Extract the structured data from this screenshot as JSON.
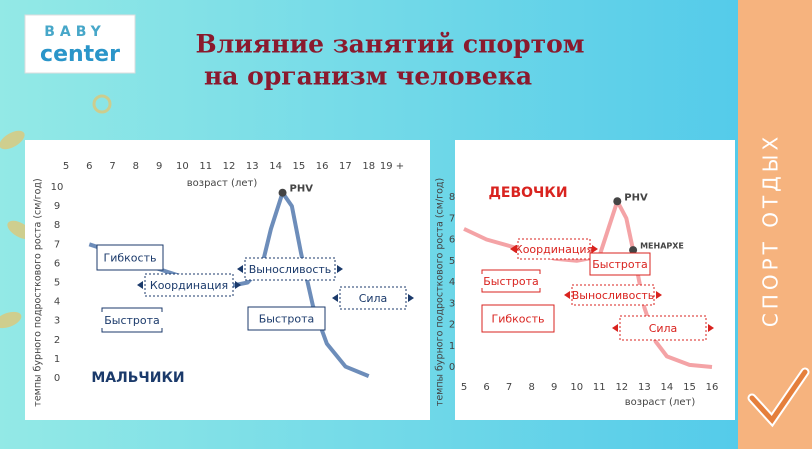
{
  "header": {
    "logo_top": "BABY",
    "logo_bottom": "center",
    "title_line1": "Влияние занятий спортом",
    "title_line2": "на организм человека",
    "sidebar": "СПОРТ  ОТДЫХ"
  },
  "chart_data": [
    {
      "type": "line",
      "title": "МАЛЬЧИКИ",
      "color": "#6d8dba",
      "text_color": "#1b3a6b",
      "xaxis_position": "top",
      "xlabel": "возраст (лет)",
      "ylabel": "темпы бурного подросткового роста (см/год)",
      "x": [
        6,
        7,
        8,
        9,
        10,
        11,
        12,
        12.8,
        13.4,
        13.8,
        14.3,
        14.7,
        15.1,
        15.6,
        16.2,
        17,
        18
      ],
      "values": [
        7,
        6.6,
        6.1,
        5.7,
        5.3,
        5,
        4.8,
        5,
        5.8,
        7.8,
        9.7,
        9,
        6.5,
        3.8,
        1.8,
        0.6,
        0.1
      ],
      "xlim": [
        5,
        19
      ],
      "ylim": [
        0,
        10
      ],
      "xticks": [
        5,
        6,
        7,
        8,
        9,
        10,
        11,
        12,
        13,
        14,
        15,
        16,
        17,
        18,
        {
          "value": 19,
          "label": "19 +"
        }
      ],
      "yticks": [
        0,
        1,
        2,
        3,
        4,
        5,
        6,
        7,
        8,
        9,
        10
      ],
      "markers": [
        {
          "label": "PHV",
          "x": 14.3,
          "y": 9.7
        }
      ],
      "annotations": [
        "Гибкость",
        "Координация",
        "Выносливость",
        "Сила",
        "Быстрота",
        "Быстрота"
      ]
    },
    {
      "type": "line",
      "title": "ДЕВОЧКИ",
      "color": "#f4a3a6",
      "text_color": "#d9231f",
      "xaxis_position": "bottom",
      "xlabel": "возраст (лет)",
      "ylabel": "темпы бурного подросткового роста (см/год)",
      "x": [
        5,
        6,
        7,
        8,
        9,
        10,
        11,
        11.4,
        11.8,
        12.2,
        12.5,
        13,
        13.5,
        14,
        15,
        16
      ],
      "values": [
        6.5,
        6,
        5.7,
        5.4,
        5.1,
        5,
        5.2,
        6.5,
        7.8,
        7,
        5.5,
        2.8,
        1.2,
        0.5,
        0.1,
        0
      ],
      "xlim": [
        5,
        16
      ],
      "ylim": [
        0,
        8
      ],
      "xticks": [
        5,
        6,
        7,
        8,
        9,
        10,
        11,
        12,
        13,
        14,
        15,
        16
      ],
      "yticks": [
        0,
        1,
        2,
        3,
        4,
        5,
        6,
        7,
        8
      ],
      "markers": [
        {
          "label": "PHV",
          "x": 11.8,
          "y": 7.8
        },
        {
          "label": "МЕНАРХЕ",
          "x": 12.5,
          "y": 5.5
        }
      ],
      "annotations": [
        "Координация",
        "Быстрота",
        "Быстрота",
        "Выносливость",
        "Гибкость",
        "Сила"
      ]
    }
  ]
}
